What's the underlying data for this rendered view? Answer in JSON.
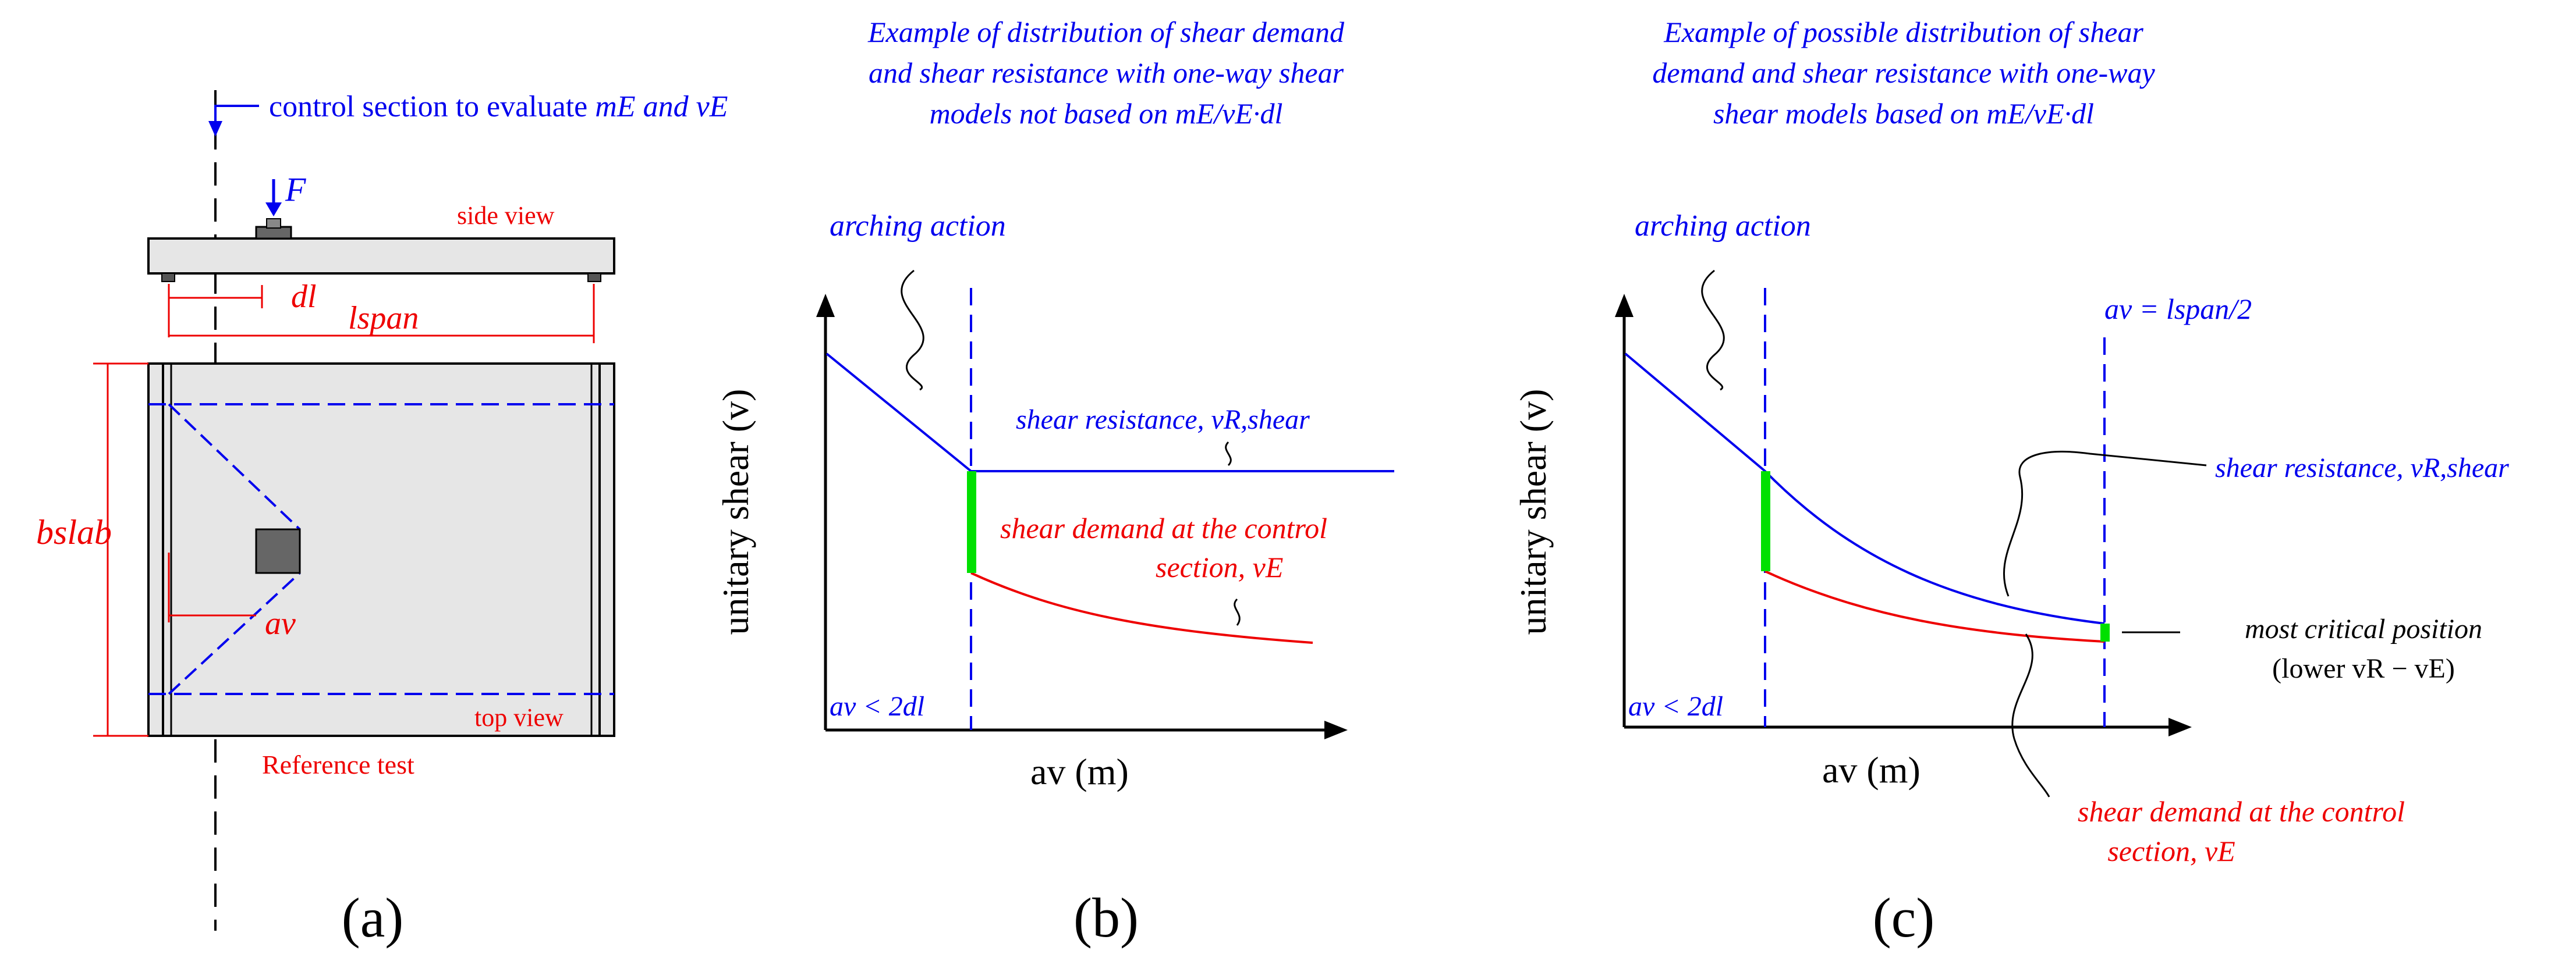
{
  "colors": {
    "resistance": "#0000ee",
    "demand": "#ee0000",
    "highlight": "#00e000",
    "slab_fill": "#e6e6e6",
    "axis": "#000000"
  },
  "panel_a": {
    "control_section_label": "control section to evaluate",
    "control_section_vars": "mE and vE",
    "load_label": "F",
    "side_view_label": "side view",
    "top_view_label": "top view",
    "dl_label": "dl",
    "lspan_label": "lspan",
    "bslab_label": "bslab",
    "av_label": "av",
    "reference_label": "Reference test",
    "caption": "(a)"
  },
  "panel_b": {
    "title_line1": "Example of distribution of shear demand",
    "title_line2": "and shear resistance with one-way shear",
    "title_line3": "models not based on mE/vE·dl",
    "arching_label": "arching action",
    "resistance_label": "shear resistance, vR,shear",
    "demand_label_line1": "shear demand at the control",
    "demand_label_line2": "section, vE",
    "limit_label": "av < 2dl",
    "y_axis_label": "unitary shear (v)",
    "x_axis_label": "av (m)",
    "caption": "(b)"
  },
  "panel_c": {
    "title_line1": "Example of possible distribution of shear",
    "title_line2": "demand and shear resistance with one-way",
    "title_line3": "shear models  based on mE/vE·dl",
    "arching_label": "arching action",
    "midspan_label": "av = lspan/2",
    "resistance_label": "shear resistance, vR,shear",
    "critical_label_line1": "most critical position",
    "critical_label_line2": "(lower vR − vE)",
    "demand_label_line1": "shear demand at the control",
    "demand_label_line2": "section, vE",
    "limit_label": "av < 2dl",
    "y_axis_label": "unitary shear (v)",
    "x_axis_label": "av (m)",
    "caption": "(c)"
  }
}
